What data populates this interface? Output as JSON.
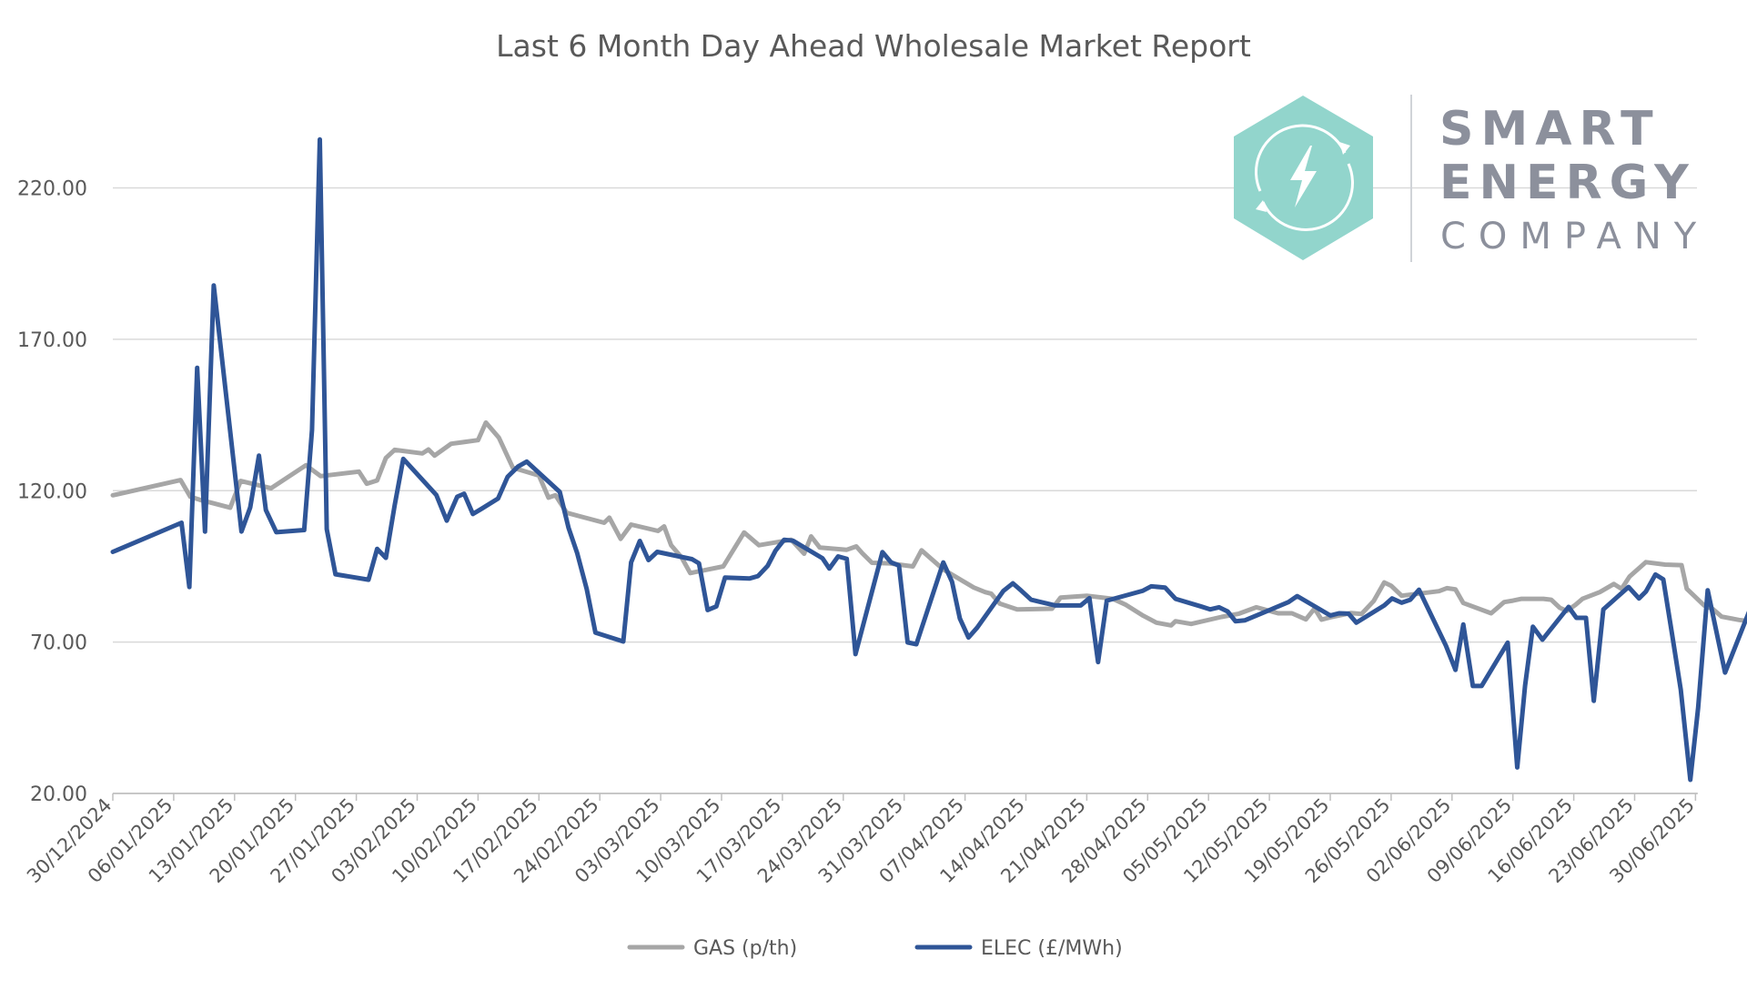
{
  "chart_data": {
    "type": "line",
    "title": "Last 6 Month Day Ahead Wholesale Market Report",
    "xlabel": "",
    "ylabel": "",
    "ylim": [
      20,
      240
    ],
    "y_ticks": [
      "20.00",
      "70.00",
      "120.00",
      "170.00",
      "220.00"
    ],
    "y_tick_values": [
      20,
      70,
      120,
      170,
      220
    ],
    "x_tick_labels": [
      "30/12/2024",
      "06/01/2025",
      "13/01/2025",
      "20/01/2025",
      "27/01/2025",
      "03/02/2025",
      "10/02/2025",
      "17/02/2025",
      "24/02/2025",
      "03/03/2025",
      "10/03/2025",
      "17/03/2025",
      "24/03/2025",
      "31/03/2025",
      "07/04/2025",
      "14/04/2025",
      "21/04/2025",
      "28/04/2025",
      "05/05/2025",
      "12/05/2025",
      "19/05/2025",
      "26/05/2025",
      "02/06/2025",
      "09/06/2025",
      "16/06/2025",
      "23/06/2025",
      "30/06/2025"
    ],
    "x_range_days": [
      0,
      182.3
    ],
    "grid": "horizontal",
    "legend_position": "bottom",
    "series": [
      {
        "name": "GAS (p/th)",
        "color": "#a6a6a6",
        "points": [
          [
            0,
            118.5
          ],
          [
            7.8,
            123.5
          ],
          [
            8.9,
            118
          ],
          [
            10,
            117
          ],
          [
            11.5,
            115.9
          ],
          [
            13.5,
            114.4
          ],
          [
            14.7,
            123.2
          ],
          [
            18.2,
            120.8
          ],
          [
            22.2,
            128.4
          ],
          [
            23.9,
            124.8
          ],
          [
            28.3,
            126.3
          ],
          [
            29.2,
            122.3
          ],
          [
            30.4,
            123.4
          ],
          [
            31.4,
            130.8
          ],
          [
            32.4,
            133.5
          ],
          [
            35.6,
            132.3
          ],
          [
            36.3,
            133.6
          ],
          [
            37,
            131.6
          ],
          [
            38.9,
            135.5
          ],
          [
            42,
            136.7
          ],
          [
            42.9,
            142.5
          ],
          [
            44.4,
            137.5
          ],
          [
            46,
            127.6
          ],
          [
            49,
            125
          ],
          [
            50.1,
            117.7
          ],
          [
            50.9,
            118.5
          ],
          [
            52.2,
            112.7
          ],
          [
            56.5,
            109.4
          ],
          [
            57.1,
            111.1
          ],
          [
            58.4,
            104.1
          ],
          [
            59.6,
            108.8
          ],
          [
            62.7,
            106.7
          ],
          [
            63.4,
            108.2
          ],
          [
            64.2,
            102
          ],
          [
            65.4,
            98
          ],
          [
            66.4,
            92.8
          ],
          [
            70.2,
            95
          ],
          [
            72.6,
            106.2
          ],
          [
            74.3,
            102
          ],
          [
            78,
            103.8
          ],
          [
            79.5,
            99.2
          ],
          [
            80.3,
            104.9
          ],
          [
            81.3,
            101.2
          ],
          [
            84.4,
            100.5
          ],
          [
            85.5,
            101.6
          ],
          [
            86.2,
            99.3
          ],
          [
            87.3,
            96.2
          ],
          [
            89.3,
            96
          ],
          [
            92,
            95
          ],
          [
            93,
            100.3
          ],
          [
            95.5,
            94
          ],
          [
            99,
            88
          ],
          [
            100.3,
            86.5
          ],
          [
            101,
            86
          ],
          [
            102,
            82.7
          ],
          [
            104,
            80.8
          ],
          [
            108,
            81
          ],
          [
            109,
            84.7
          ],
          [
            112,
            85.3
          ],
          [
            115,
            84.3
          ],
          [
            116.5,
            82.3
          ],
          [
            118.5,
            78.7
          ],
          [
            120,
            76.4
          ],
          [
            121.7,
            75.5
          ],
          [
            122.2,
            76.9
          ],
          [
            124,
            76
          ],
          [
            127.5,
            78.3
          ],
          [
            129.5,
            79.4
          ],
          [
            131.5,
            81.5
          ],
          [
            134,
            79.5
          ],
          [
            135.6,
            79.5
          ],
          [
            137.2,
            77.5
          ],
          [
            138.2,
            81.1
          ],
          [
            139,
            77.4
          ],
          [
            140,
            78.2
          ],
          [
            142.4,
            79.6
          ],
          [
            143.6,
            79.3
          ],
          [
            145,
            83.6
          ],
          [
            146.2,
            89.7
          ],
          [
            147,
            88.6
          ],
          [
            148.2,
            85.3
          ],
          [
            152.5,
            86.8
          ],
          [
            153.4,
            87.8
          ],
          [
            154.4,
            87.4
          ],
          [
            155.3,
            82.9
          ],
          [
            158.5,
            79.5
          ],
          [
            160,
            83.2
          ],
          [
            161,
            83.7
          ],
          [
            162,
            84.3
          ],
          [
            164.5,
            84.3
          ],
          [
            165.4,
            84
          ],
          [
            166.4,
            81.3
          ],
          [
            167.2,
            80.3
          ],
          [
            168.2,
            82.3
          ],
          [
            169,
            84.3
          ],
          [
            171,
            86.5
          ],
          [
            172.6,
            89.2
          ],
          [
            173.5,
            87.6
          ],
          [
            174.4,
            91.6
          ],
          [
            176.3,
            96.4
          ],
          [
            178.5,
            95.6
          ],
          [
            180.4,
            95.4
          ],
          [
            181,
            87.6
          ],
          [
            183,
            82.1
          ],
          [
            184,
            80.9
          ],
          [
            185,
            78.4
          ],
          [
            187,
            77.3
          ],
          [
            188.5,
            76.8
          ],
          [
            189.2,
            76.1
          ]
        ]
      },
      {
        "name": "ELEC (£/MWh)",
        "color": "#2f5597",
        "points": [
          [
            0,
            99.8
          ],
          [
            7.9,
            109.4
          ],
          [
            8.8,
            88.2
          ],
          [
            9.7,
            160.6
          ],
          [
            10.6,
            106.5
          ],
          [
            11.6,
            187.8
          ],
          [
            14.8,
            106.5
          ],
          [
            15.8,
            114.5
          ],
          [
            16.8,
            131.6
          ],
          [
            17.6,
            113.6
          ],
          [
            18.8,
            106.3
          ],
          [
            22,
            107
          ],
          [
            22.9,
            140
          ],
          [
            23.8,
            236
          ],
          [
            24.6,
            107.3
          ],
          [
            25.6,
            92.4
          ],
          [
            29.4,
            90.6
          ],
          [
            30.4,
            100.8
          ],
          [
            31.4,
            97.8
          ],
          [
            32.4,
            115.1
          ],
          [
            33.4,
            130.5
          ],
          [
            37.2,
            118.6
          ],
          [
            38.4,
            110.1
          ],
          [
            39.6,
            118
          ],
          [
            40.4,
            119
          ],
          [
            41.4,
            112.3
          ],
          [
            42.4,
            114
          ],
          [
            44.3,
            117.4
          ],
          [
            45.4,
            124.6
          ],
          [
            46.6,
            128
          ],
          [
            47.6,
            129.6
          ],
          [
            51.4,
            119.6
          ],
          [
            52.4,
            107.8
          ],
          [
            53.4,
            99.3
          ],
          [
            54.5,
            87.4
          ],
          [
            55.5,
            73.1
          ],
          [
            58.7,
            70.2
          ],
          [
            59.6,
            96.3
          ],
          [
            60.6,
            103.4
          ],
          [
            61.6,
            97.1
          ],
          [
            62.6,
            99.8
          ],
          [
            66.6,
            97.4
          ],
          [
            67.4,
            96
          ],
          [
            68.4,
            80.6
          ],
          [
            69.4,
            81.8
          ],
          [
            70.4,
            91.3
          ],
          [
            73.2,
            91
          ],
          [
            74.2,
            91.8
          ],
          [
            75.3,
            95.2
          ],
          [
            76.2,
            100.2
          ],
          [
            77.2,
            103.8
          ],
          [
            78.2,
            103.5
          ],
          [
            81.6,
            97.7
          ],
          [
            82.4,
            94.3
          ],
          [
            83.4,
            98.3
          ],
          [
            84.4,
            97.5
          ],
          [
            85.4,
            66
          ],
          [
            88.5,
            99.7
          ],
          [
            89.5,
            96.3
          ],
          [
            90.4,
            95.3
          ],
          [
            91.4,
            69.9
          ],
          [
            92.4,
            69.3
          ],
          [
            95.5,
            96.3
          ],
          [
            96.5,
            89.9
          ],
          [
            97.4,
            77.8
          ],
          [
            98.4,
            71.5
          ],
          [
            99.4,
            74.8
          ],
          [
            102.4,
            86.9
          ],
          [
            103.5,
            89.4
          ],
          [
            104.5,
            86.9
          ],
          [
            105.6,
            84
          ],
          [
            108.4,
            82.1
          ],
          [
            111.3,
            82.1
          ],
          [
            112.3,
            84.5
          ],
          [
            113.3,
            63.4
          ],
          [
            114.3,
            83.7
          ],
          [
            118.4,
            86.9
          ],
          [
            119.4,
            88.4
          ],
          [
            121,
            88
          ],
          [
            122.2,
            84.3
          ],
          [
            125.2,
            81.7
          ],
          [
            126.2,
            80.8
          ],
          [
            127.2,
            81.5
          ],
          [
            128.2,
            80.1
          ],
          [
            129.1,
            76.9
          ],
          [
            130.2,
            77.2
          ],
          [
            132.2,
            79.6
          ],
          [
            135.2,
            83.2
          ],
          [
            136.2,
            85.2
          ],
          [
            140,
            78.8
          ],
          [
            141,
            79.5
          ],
          [
            142.1,
            79.4
          ],
          [
            143,
            76.4
          ],
          [
            146.2,
            82.1
          ],
          [
            147.1,
            84.4
          ],
          [
            148.2,
            83
          ],
          [
            149.2,
            84
          ],
          [
            150.2,
            87.3
          ],
          [
            153.3,
            68.8
          ],
          [
            154.4,
            60.8
          ],
          [
            155.3,
            75.8
          ],
          [
            156.4,
            55.5
          ],
          [
            157.4,
            55.5
          ],
          [
            160.4,
            69.8
          ],
          [
            161.5,
            28.6
          ],
          [
            162.4,
            55.6
          ],
          [
            163.3,
            75.1
          ],
          [
            164.4,
            70.8
          ],
          [
            167.4,
            81.6
          ],
          [
            168.3,
            78
          ],
          [
            169.4,
            78
          ],
          [
            170.3,
            50.6
          ],
          [
            171.4,
            80.8
          ],
          [
            174.3,
            88.2
          ],
          [
            175.5,
            84.4
          ],
          [
            176.3,
            86.7
          ],
          [
            177.4,
            92.3
          ],
          [
            178.3,
            90.7
          ],
          [
            179.3,
            72.7
          ],
          [
            180.3,
            54.3
          ],
          [
            181.4,
            24.5
          ],
          [
            182.3,
            48.3
          ],
          [
            183.4,
            87.1
          ],
          [
            185.4,
            59.9
          ],
          [
            188.4,
            81.8
          ],
          [
            189.2,
            85.1
          ]
        ]
      }
    ]
  },
  "logo": {
    "line1": "SMART",
    "line2": "ENERGY",
    "line3": "COMPANY",
    "hex_color": "#92d5cc",
    "text_color": "#8c909c",
    "icon": "lightning-refresh-icon"
  }
}
